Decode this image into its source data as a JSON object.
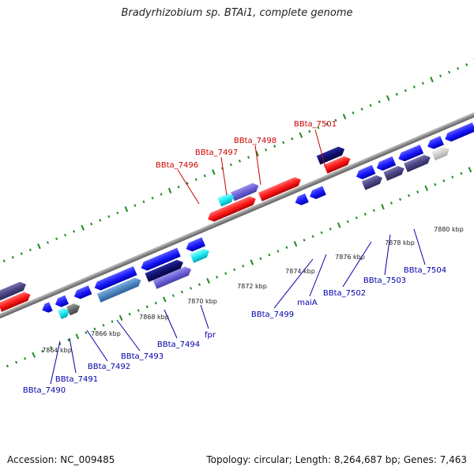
{
  "header": {
    "title": "Bradyrhizobium sp. BTAi1, complete genome"
  },
  "footer": {
    "accession": "Accession: NC_009485",
    "summary": "Topology: circular; Length: 8,264,687 bp; Genes: 7,463"
  },
  "colors": {
    "backbone": "#8a8a8a",
    "tick": "#1e8a1e",
    "forward_label": "#cc0000",
    "reverse_label": "#0000aa",
    "scale_label": "#222222"
  },
  "scale": {
    "unit": "kbp",
    "labels": [
      "7864 kbp",
      "7866 kbp",
      "7868 kbp",
      "7870 kbp",
      "7872 kbp",
      "7874 kbp",
      "7876 kbp",
      "7878 kbp",
      "7880 kbp"
    ]
  },
  "forward_labels": [
    {
      "text": "BBta_7496"
    },
    {
      "text": "BBta_7497"
    },
    {
      "text": "BBta_7498"
    },
    {
      "text": "BBta_7501"
    }
  ],
  "reverse_labels": [
    {
      "text": "BBta_7490"
    },
    {
      "text": "BBta_7491"
    },
    {
      "text": "BBta_7492"
    },
    {
      "text": "BBta_7493"
    },
    {
      "text": "BBta_7494"
    },
    {
      "text": "fpr"
    },
    {
      "text": "BBta_7499"
    },
    {
      "text": "maiA"
    },
    {
      "text": "BBta_7502"
    },
    {
      "text": "BBta_7503"
    },
    {
      "text": "BBta_7504"
    }
  ]
}
